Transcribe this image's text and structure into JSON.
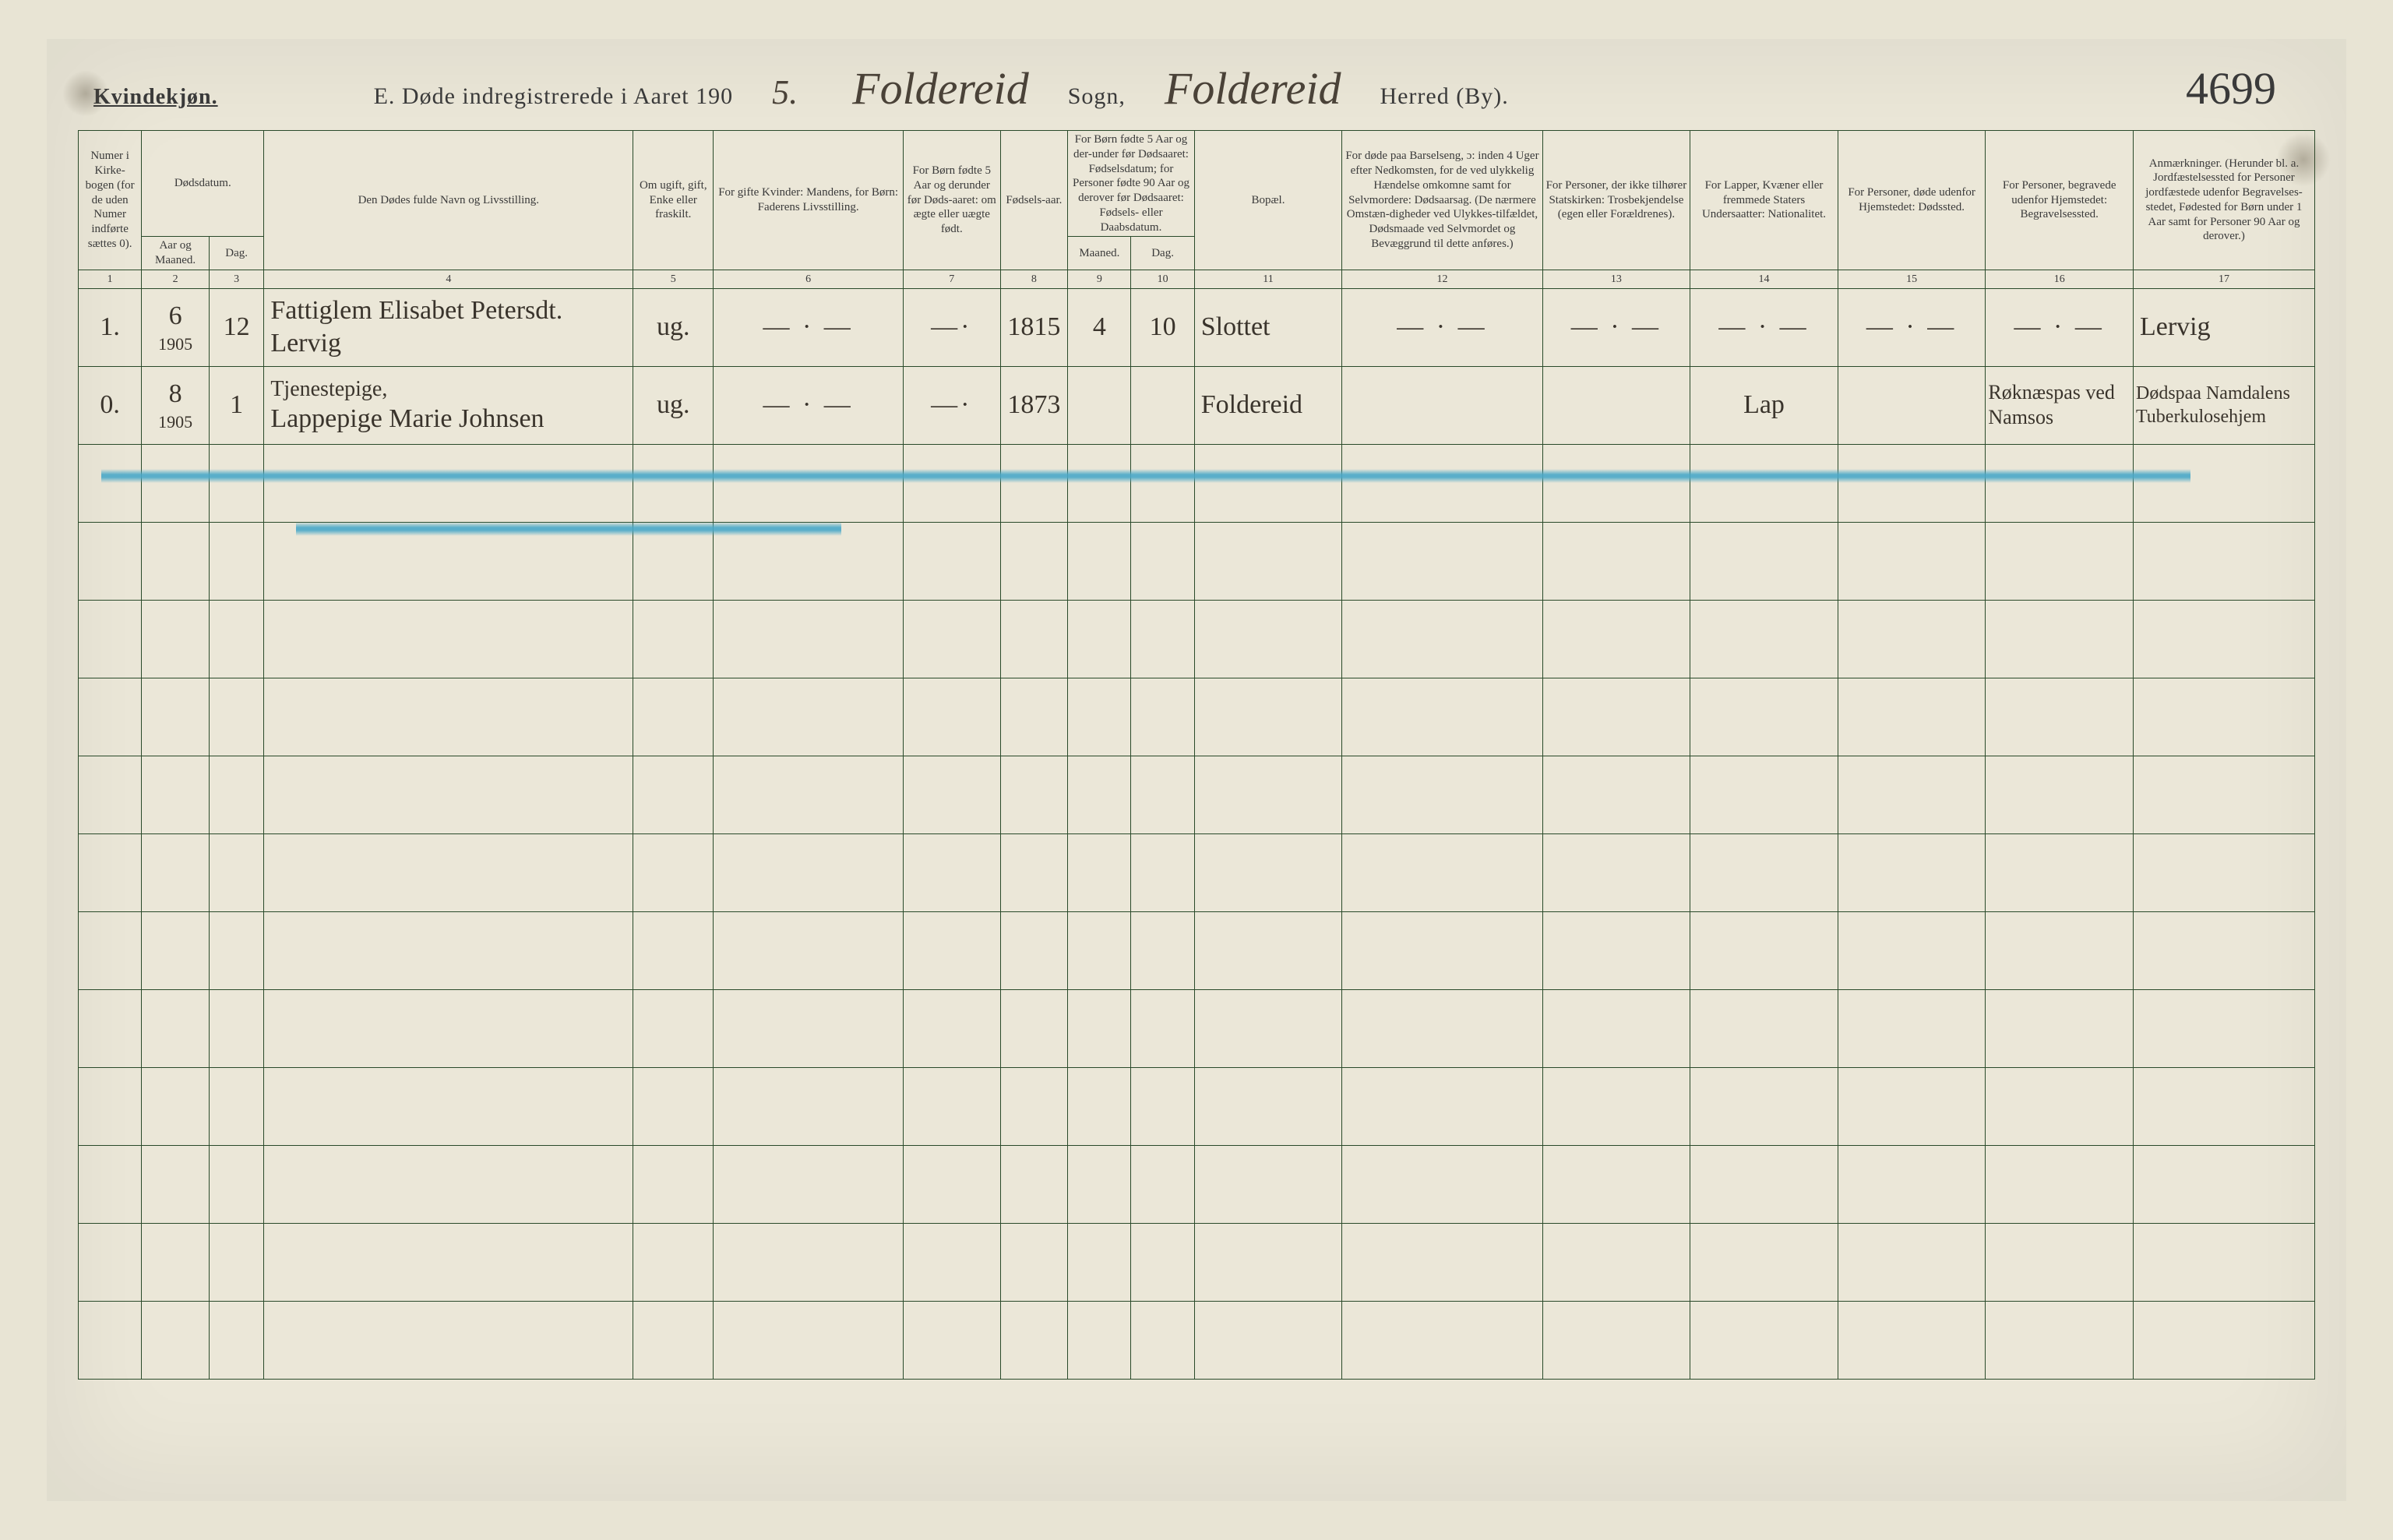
{
  "header": {
    "kvindekjon": "Kvindekjøn.",
    "title_prefix": "E.  Døde indregistrerede i Aaret 190",
    "year_suffix": "5.",
    "sogn_hand": "Foldereid",
    "sogn_label": "Sogn,",
    "herred_hand": "Foldereid",
    "herred_label": "Herred (By).",
    "page_number": "4699"
  },
  "columns": {
    "c1": "Numer i Kirke-bogen (for de uden Numer indførte sættes 0).",
    "c2_top": "Dødsdatum.",
    "c2a": "Aar og Maaned.",
    "c2b": "Dag.",
    "c4": "Den Dødes fulde Navn og Livsstilling.",
    "c5": "Om ugift, gift, Enke eller fraskilt.",
    "c6": "For gifte Kvinder: Mandens, for Børn: Faderens Livsstilling.",
    "c7": "For Børn fødte 5 Aar og derunder før Døds-aaret: om ægte eller uægte født.",
    "c8": "Fødsels-aar.",
    "c9_top": "For Børn fødte 5 Aar og der-under før Dødsaaret: Fødselsdatum; for Personer fødte 90 Aar og derover før Dødsaaret: Fødsels- eller Daabsdatum.",
    "c9a": "Maaned.",
    "c9b": "Dag.",
    "c11": "Bopæl.",
    "c12": "For døde paa Barselseng, ɔ: inden 4 Uger efter Nedkomsten, for de ved ulykkelig Hændelse omkomne samt for Selvmordere: Dødsaarsag. (De nærmere Omstæn-digheder ved Ulykkes-tilfældet, Dødsmaade ved Selvmordet og Bevæggrund til dette anføres.)",
    "c13": "For Personer, der ikke tilhører Statskirken: Trosbekjendelse (egen eller Forældrenes).",
    "c14": "For Lapper, Kvæner eller fremmede Staters Undersaatter: Nationalitet.",
    "c15": "For Personer, døde udenfor Hjemstedet: Dødssted.",
    "c16": "For Personer, begravede udenfor Hjemstedet: Begravelsessted.",
    "c17": "Anmærkninger. (Herunder bl. a. Jordfæstelsessted for Personer jordfæstede udenfor Begravelses-stedet, Fødested for Børn under 1 Aar samt for Personer 90 Aar og derover.)"
  },
  "colnums": [
    "1",
    "2",
    "3",
    "4",
    "5",
    "6",
    "7",
    "8",
    "9",
    "10",
    "11",
    "12",
    "13",
    "14",
    "15",
    "16",
    "17"
  ],
  "rows": [
    {
      "num": "1.",
      "aar": "6",
      "aar_sub": "1905",
      "dag": "12",
      "navn": "Fattiglem Elisabet Petersdt. Lervig",
      "stand": "ug.",
      "c6": "— · —",
      "c7": "—·",
      "faar": "1815",
      "fmnd": "4",
      "fdag": "10",
      "bopael": "Slottet",
      "c12": "— · —",
      "c13": "— · —",
      "c14": "— · —",
      "c15": "— · —",
      "c16": "— · —",
      "c17": "Lervig"
    },
    {
      "num": "0.",
      "aar": "8",
      "aar_sub": "1905",
      "dag": "1",
      "navn_top": "Tjenestepige,",
      "navn": "Lappepige Marie Johnsen",
      "stand": "ug.",
      "c6": "— · —",
      "c7": "—·",
      "faar": "1873",
      "fmnd": "",
      "fdag": "",
      "bopael": "Foldereid",
      "c12": "",
      "c13": "",
      "c14": "Lap",
      "c15": "",
      "c16": "Røknæspas ved Namsos",
      "c17": "Dødspaa Namdalens Tuberkulosehjem"
    }
  ],
  "style": {
    "page_bg": "#ebe7d8",
    "rule_color": "#2a4a2a",
    "hand_color": "#3a342c",
    "strike_color": "#4aa8c8",
    "empty_rows": 12,
    "col_widths_pct": [
      3.0,
      3.2,
      2.6,
      17.5,
      3.8,
      9.0,
      4.6,
      3.2,
      3.0,
      3.0,
      7.0,
      9.5,
      7.0,
      7.0,
      7.0,
      7.0,
      8.6
    ]
  }
}
